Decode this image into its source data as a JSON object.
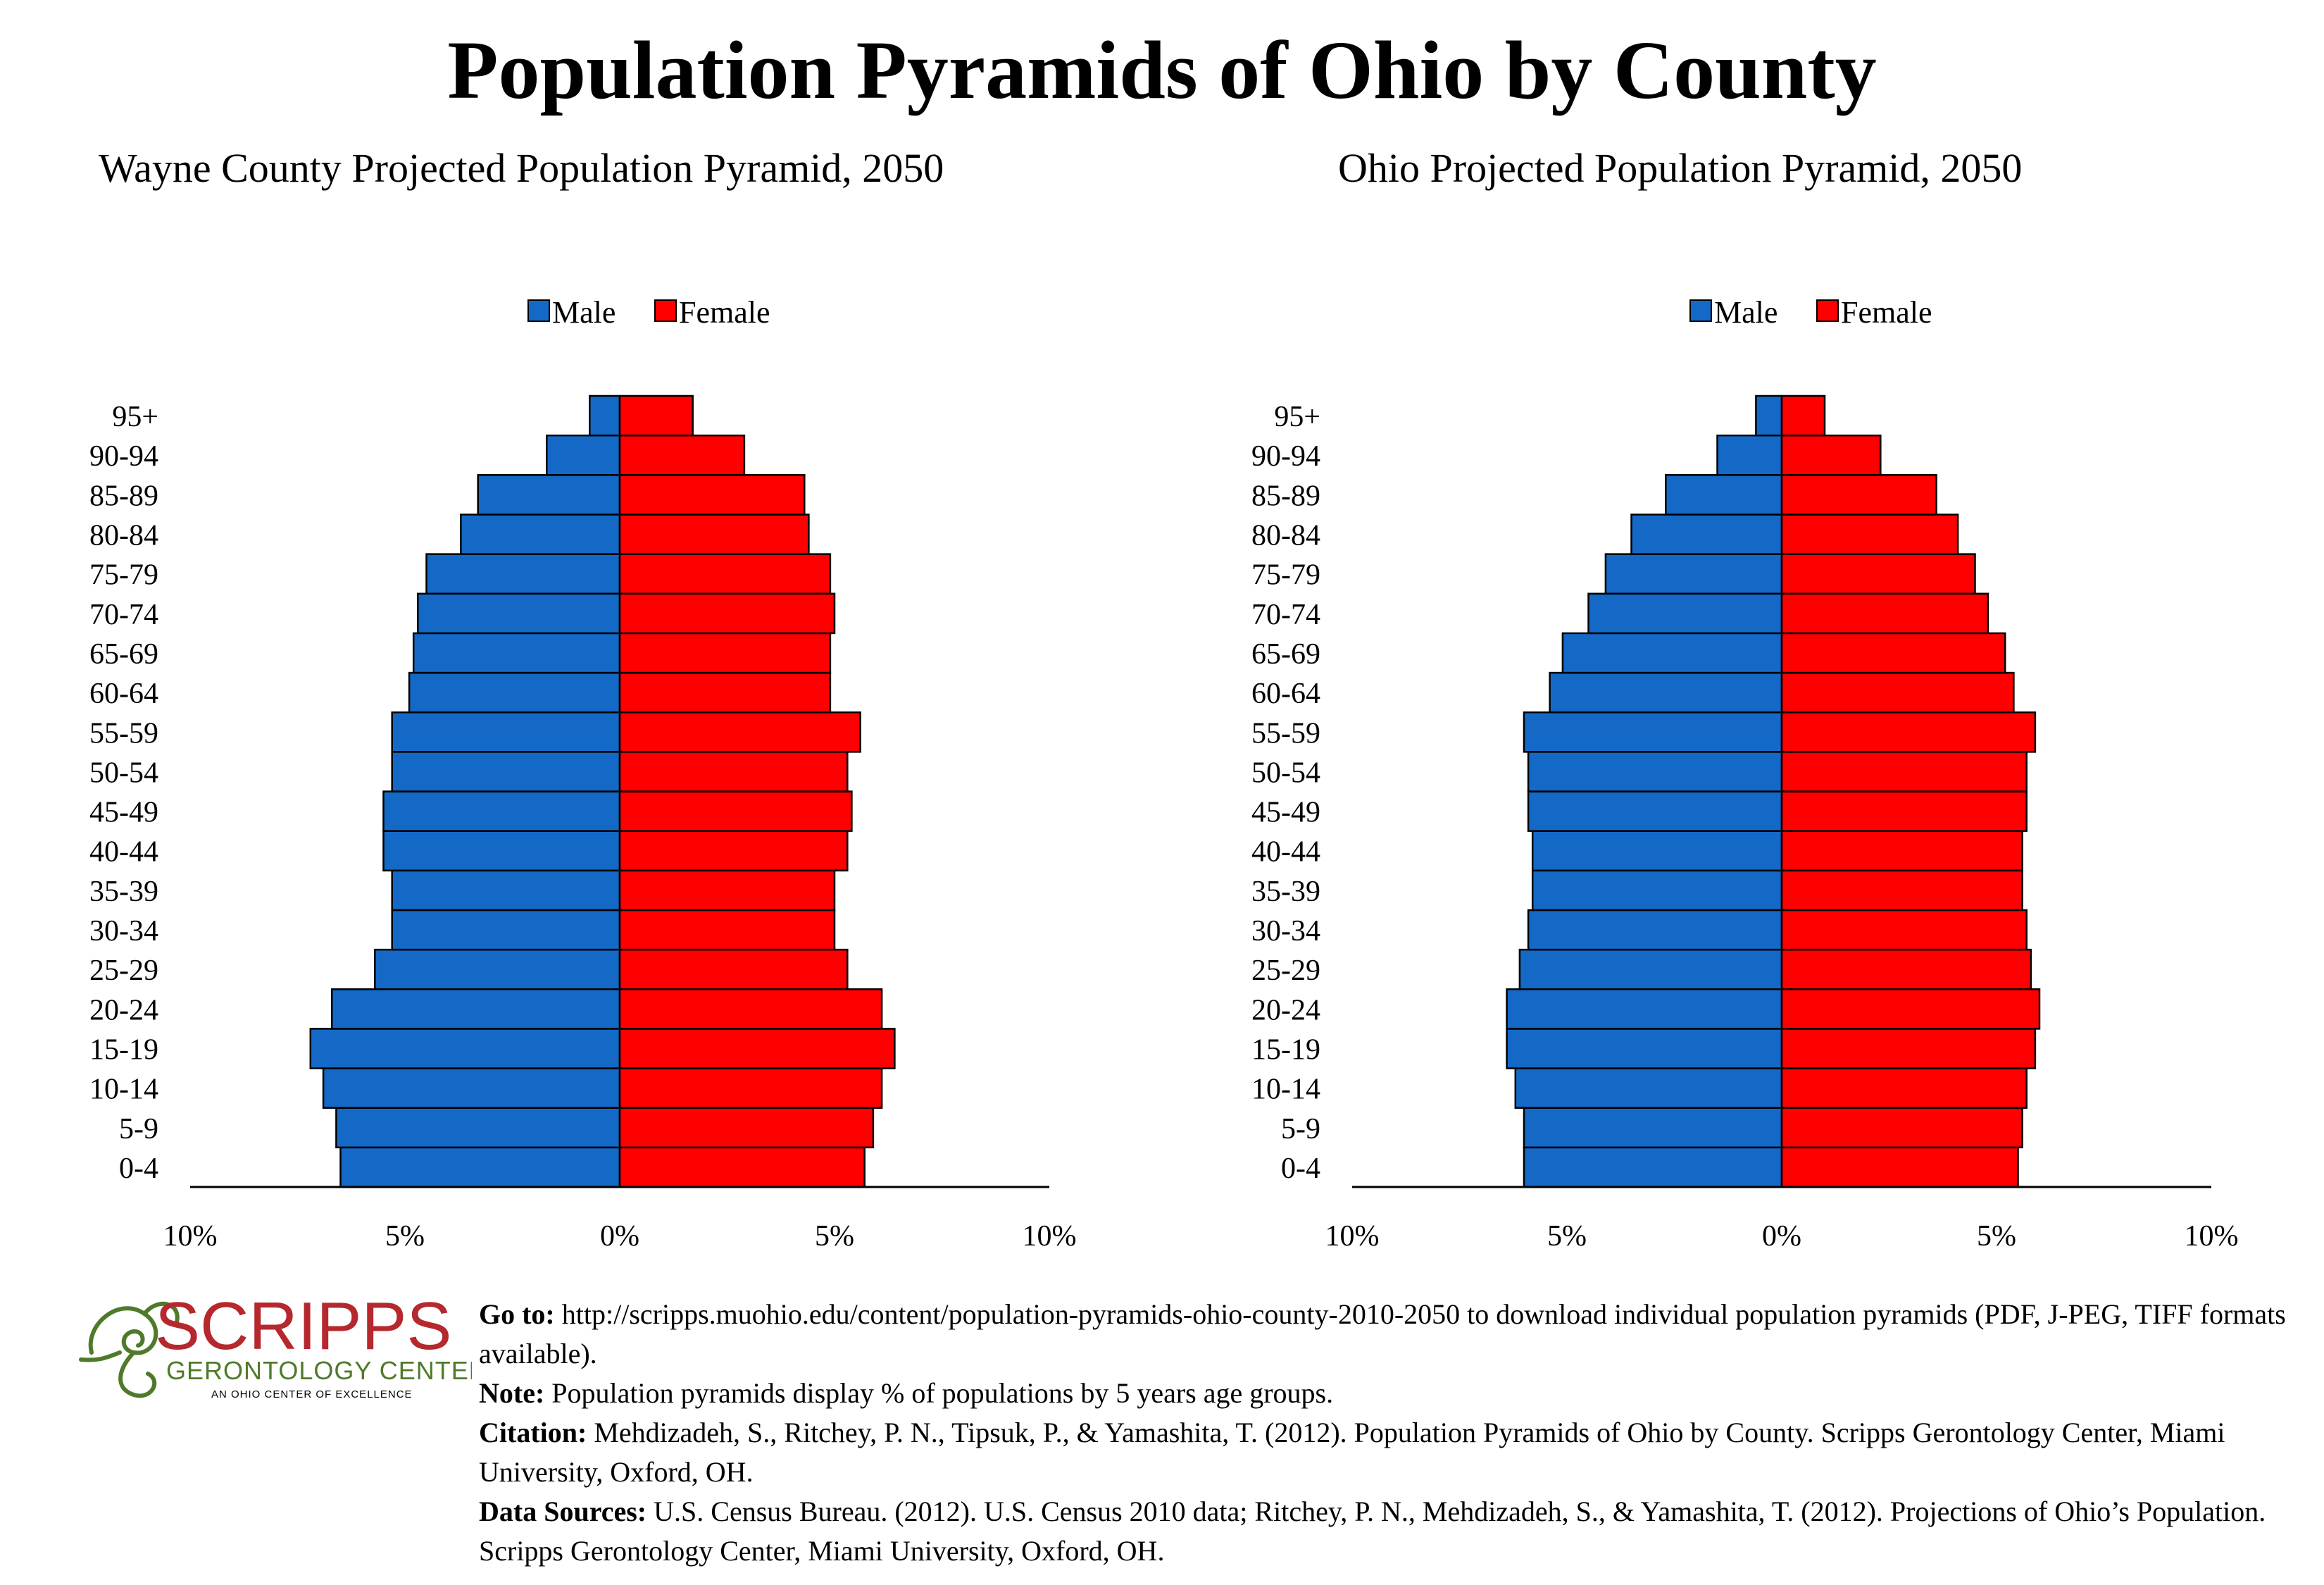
{
  "title": "Population Pyramids of Ohio by County",
  "colors": {
    "male": "#1469C7",
    "female": "#FF0000",
    "stroke": "#000000",
    "logo_red": "#B5282E",
    "logo_green": "#4F7A2A"
  },
  "chart_data": [
    {
      "type": "bar",
      "orientation": "horizontal-pyramid",
      "title": "Wayne County Projected Population Pyramid, 2050",
      "legend": [
        "Male",
        "Female"
      ],
      "legend_position": "top",
      "categories": [
        "0-4",
        "5-9",
        "10-14",
        "15-19",
        "20-24",
        "25-29",
        "30-34",
        "35-39",
        "40-44",
        "45-49",
        "50-54",
        "55-59",
        "60-64",
        "65-69",
        "70-74",
        "75-79",
        "80-84",
        "85-89",
        "90-94",
        "95+"
      ],
      "series": [
        {
          "name": "Male",
          "values": [
            6.5,
            6.6,
            6.9,
            7.2,
            6.7,
            5.7,
            5.3,
            5.3,
            5.5,
            5.5,
            5.3,
            5.3,
            4.9,
            4.8,
            4.7,
            4.5,
            3.7,
            3.3,
            1.7,
            0.7
          ]
        },
        {
          "name": "Female",
          "values": [
            5.7,
            5.9,
            6.1,
            6.4,
            6.1,
            5.3,
            5.0,
            5.0,
            5.3,
            5.4,
            5.3,
            5.6,
            4.9,
            4.9,
            5.0,
            4.9,
            4.4,
            4.3,
            2.9,
            1.7
          ]
        }
      ],
      "xlim": [
        -10,
        10
      ],
      "x_ticks": [
        "10%",
        "5%",
        "0%",
        "5%",
        "10%"
      ]
    },
    {
      "type": "bar",
      "orientation": "horizontal-pyramid",
      "title": "Ohio Projected Population Pyramid, 2050",
      "legend": [
        "Male",
        "Female"
      ],
      "legend_position": "top",
      "categories": [
        "0-4",
        "5-9",
        "10-14",
        "15-19",
        "20-24",
        "25-29",
        "30-34",
        "35-39",
        "40-44",
        "45-49",
        "50-54",
        "55-59",
        "60-64",
        "65-69",
        "70-74",
        "75-79",
        "80-84",
        "85-89",
        "90-94",
        "95+"
      ],
      "series": [
        {
          "name": "Male",
          "values": [
            6.0,
            6.0,
            6.2,
            6.4,
            6.4,
            6.1,
            5.9,
            5.8,
            5.8,
            5.9,
            5.9,
            6.0,
            5.4,
            5.1,
            4.5,
            4.1,
            3.5,
            2.7,
            1.5,
            0.6
          ]
        },
        {
          "name": "Female",
          "values": [
            5.5,
            5.6,
            5.7,
            5.9,
            6.0,
            5.8,
            5.7,
            5.6,
            5.6,
            5.7,
            5.7,
            5.9,
            5.4,
            5.2,
            4.8,
            4.5,
            4.1,
            3.6,
            2.3,
            1.0
          ]
        }
      ],
      "xlim": [
        -10,
        10
      ],
      "x_ticks": [
        "10%",
        "5%",
        "0%",
        "5%",
        "10%"
      ]
    }
  ],
  "logo": {
    "name": "SCRIPPS",
    "sub": "GERONTOLOGY CENTER",
    "tagline": "AN OHIO CENTER OF EXCELLENCE"
  },
  "footer": {
    "goto_label": "Go to:",
    "goto_text": "http://scripps.muohio.edu/content/population-pyramids-ohio-county-2010-2050 to download individual population pyramids (PDF, J-PEG, TIFF formats available).",
    "note_label": "Note:",
    "note_text": "Population pyramids display % of populations by 5 years age groups.",
    "citation_label": "Citation:",
    "citation_text": "Mehdizadeh, S., Ritchey, P. N., Tipsuk, P., & Yamashita, T. (2012). Population Pyramids of Ohio by County. Scripps Gerontology Center, Miami University, Oxford, OH.",
    "sources_label": "Data Sources:",
    "sources_text": "U.S. Census Bureau. (2012). U.S. Census 2010 data; Ritchey, P. N., Mehdizadeh, S., & Yamashita, T. (2012). Projections of Ohio’s Population. Scripps Gerontology Center, Miami University, Oxford, OH."
  }
}
